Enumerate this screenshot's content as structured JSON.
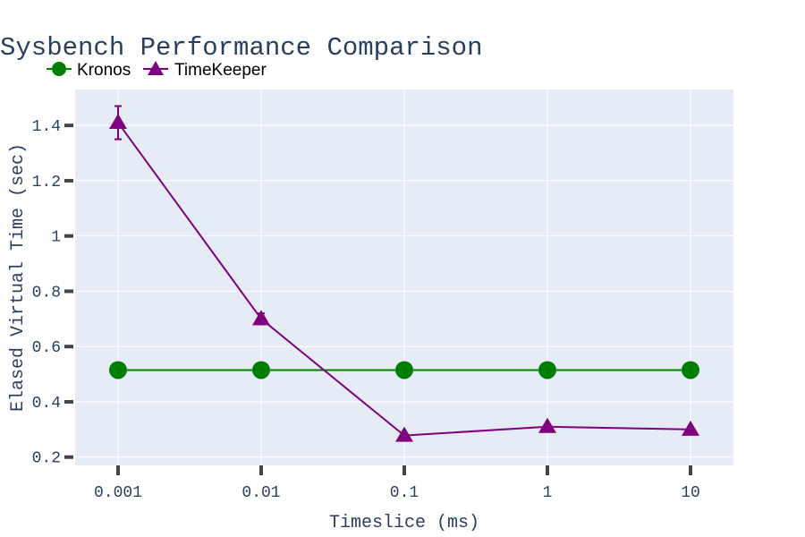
{
  "chart_data": {
    "type": "line",
    "title": "Sysbench Performance Comparison",
    "xlabel": "Timeslice (ms)",
    "ylabel": "Elased Virtual Time (sec)",
    "x_scale": "log",
    "categories": [
      "0.001",
      "0.01",
      "0.1",
      "1",
      "10"
    ],
    "x": [
      0.001,
      0.01,
      0.1,
      1,
      10
    ],
    "ylim": [
      0.17,
      1.53
    ],
    "yticks": [
      0.2,
      0.4,
      0.6,
      0.8,
      1,
      1.2,
      1.4
    ],
    "ytick_labels": [
      "0.2",
      "0.4",
      "0.6",
      "0.8",
      "1",
      "1.2",
      "1.4"
    ],
    "grid": true,
    "legend_position": "top-left",
    "series": [
      {
        "name": "Kronos",
        "values": [
          0.515,
          0.515,
          0.515,
          0.515,
          0.515
        ],
        "errors": [
          0,
          0,
          0,
          0,
          0
        ],
        "color": "#008000",
        "marker": "circle"
      },
      {
        "name": "TimeKeeper",
        "values": [
          1.41,
          0.7,
          0.278,
          0.31,
          0.3
        ],
        "errors": [
          0.06,
          0.02,
          0,
          0,
          0
        ],
        "color": "#800080",
        "marker": "triangle-up"
      }
    ]
  }
}
